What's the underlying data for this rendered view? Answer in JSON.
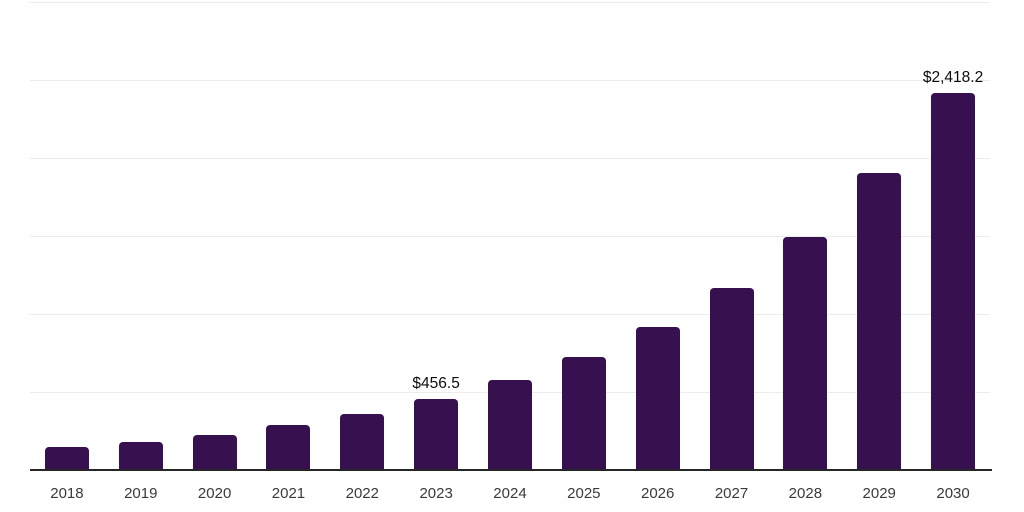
{
  "chart_data": {
    "type": "bar",
    "title": "",
    "xlabel": "",
    "ylabel": "",
    "categories": [
      "2018",
      "2019",
      "2020",
      "2021",
      "2022",
      "2023",
      "2024",
      "2025",
      "2026",
      "2027",
      "2028",
      "2029",
      "2030"
    ],
    "values": [
      147,
      178,
      224,
      287,
      360,
      456.5,
      578,
      726,
      919,
      1167,
      1493,
      1903,
      2418.2
    ],
    "data_labels": [
      null,
      null,
      null,
      null,
      null,
      "$456.5",
      null,
      null,
      null,
      null,
      null,
      null,
      "$2,418.2"
    ],
    "ylim": [
      0,
      3000
    ],
    "gridline_step": 500,
    "grid": "horizontal",
    "legend": "none",
    "y_tick_labels": "none",
    "colors": {
      "bar": "#37114F",
      "axis_line": "#262626",
      "gridline": "#ececec",
      "tick_label": "#3a3a3a",
      "data_label": "#0d0d0d",
      "background": "#ffffff"
    }
  }
}
